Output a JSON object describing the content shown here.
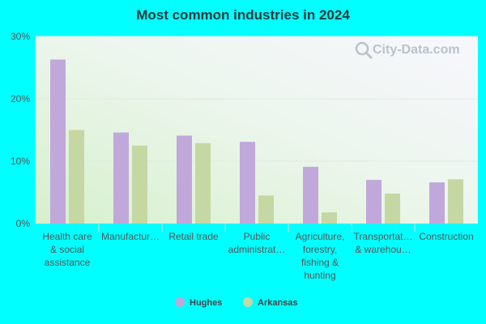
{
  "chart_data": {
    "type": "bar",
    "title": "Most common industries in 2024",
    "categories": [
      "Health care & social assistance",
      "Manufacturing",
      "Retail trade",
      "Public administration",
      "Agriculture, forestry, fishing & hunting",
      "Transportation & warehousing",
      "Construction"
    ],
    "category_labels_display": [
      [
        "Health care",
        "& social",
        "assistance"
      ],
      [
        "Manufactur…"
      ],
      [
        "Retail trade"
      ],
      [
        "Public",
        "administrat…"
      ],
      [
        "Agriculture,",
        "forestry,",
        "fishing &",
        "hunting"
      ],
      [
        "Transportat…",
        "& warehou…"
      ],
      [
        "Construction"
      ]
    ],
    "series": [
      {
        "name": "Hughes",
        "color": "#c0a8db",
        "values": [
          26.3,
          14.6,
          14.1,
          13.1,
          9.1,
          7.0,
          6.6
        ]
      },
      {
        "name": "Arkansas",
        "color": "#c5d8a4",
        "values": [
          15.0,
          12.5,
          12.9,
          4.5,
          1.8,
          4.8,
          7.1
        ]
      }
    ],
    "ylim": [
      0,
      30
    ],
    "yticks": [
      0,
      10,
      20,
      30
    ],
    "ytick_labels": [
      "0%",
      "10%",
      "20%",
      "30%"
    ],
    "grid": true,
    "legend_position": "bottom-center",
    "watermark": "City-Data.com"
  }
}
